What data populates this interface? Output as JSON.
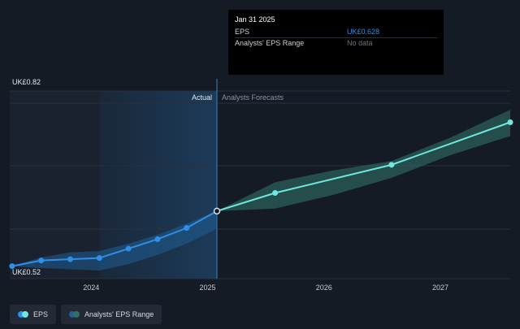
{
  "tooltip": {
    "date": "Jan 31 2025",
    "rows": [
      {
        "label": "EPS",
        "value": "UK£0.628"
      },
      {
        "label": "Analysts' EPS Range",
        "value": "No data"
      }
    ]
  },
  "legend": {
    "items": [
      {
        "label": "EPS"
      },
      {
        "label": "Analysts' EPS Range"
      }
    ]
  },
  "colors": {
    "background": "#151b25",
    "eps": "#2f8fe8",
    "forecast": "#6ee7e0",
    "range_past": "#1f5f95",
    "range_future": "#2f6f68"
  },
  "chart_data": {
    "type": "line",
    "y_top_label": "UK£0.82",
    "y_bottom_label": "UK£0.52",
    "ylim": [
      0.52,
      0.82
    ],
    "xlim": [
      2023.3,
      2027.6
    ],
    "x_ticks": [
      {
        "value": 2024.0,
        "label": "2024"
      },
      {
        "value": 2025.0,
        "label": "2025"
      },
      {
        "value": 2026.0,
        "label": "2026"
      },
      {
        "value": 2027.0,
        "label": "2027"
      }
    ],
    "divider_x": 2025.08,
    "section_labels": {
      "actual": "Actual",
      "forecast": "Analysts Forecasts"
    },
    "series": [
      {
        "name": "EPS",
        "role": "actual",
        "points": [
          {
            "x": 2023.32,
            "y": 0.54
          },
          {
            "x": 2023.57,
            "y": 0.549
          },
          {
            "x": 2023.82,
            "y": 0.551
          },
          {
            "x": 2024.07,
            "y": 0.553
          },
          {
            "x": 2024.32,
            "y": 0.568
          },
          {
            "x": 2024.57,
            "y": 0.583
          },
          {
            "x": 2024.82,
            "y": 0.601
          },
          {
            "x": 2025.08,
            "y": 0.628
          }
        ]
      },
      {
        "name": "EPS forecast",
        "role": "forecast",
        "points": [
          {
            "x": 2025.08,
            "y": 0.628
          },
          {
            "x": 2025.58,
            "y": 0.657
          },
          {
            "x": 2026.58,
            "y": 0.702
          },
          {
            "x": 2027.6,
            "y": 0.77
          }
        ]
      }
    ],
    "ranges": [
      {
        "role": "actual",
        "points": [
          {
            "x": 2023.32,
            "lo": 0.54,
            "hi": 0.54
          },
          {
            "x": 2023.57,
            "lo": 0.537,
            "hi": 0.554
          },
          {
            "x": 2023.82,
            "lo": 0.535,
            "hi": 0.562
          },
          {
            "x": 2024.07,
            "lo": 0.533,
            "hi": 0.564
          },
          {
            "x": 2024.32,
            "lo": 0.543,
            "hi": 0.576
          },
          {
            "x": 2024.57,
            "lo": 0.558,
            "hi": 0.59
          },
          {
            "x": 2024.82,
            "lo": 0.576,
            "hi": 0.608
          },
          {
            "x": 2025.08,
            "lo": 0.6,
            "hi": 0.628
          }
        ]
      },
      {
        "role": "forecast",
        "points": [
          {
            "x": 2025.08,
            "lo": 0.628,
            "hi": 0.628
          },
          {
            "x": 2025.58,
            "lo": 0.632,
            "hi": 0.674
          },
          {
            "x": 2026.08,
            "lo": 0.654,
            "hi": 0.693
          },
          {
            "x": 2026.58,
            "lo": 0.681,
            "hi": 0.708
          },
          {
            "x": 2027.08,
            "lo": 0.717,
            "hi": 0.745
          },
          {
            "x": 2027.6,
            "lo": 0.748,
            "hi": 0.79
          }
        ]
      }
    ],
    "grid": true
  }
}
